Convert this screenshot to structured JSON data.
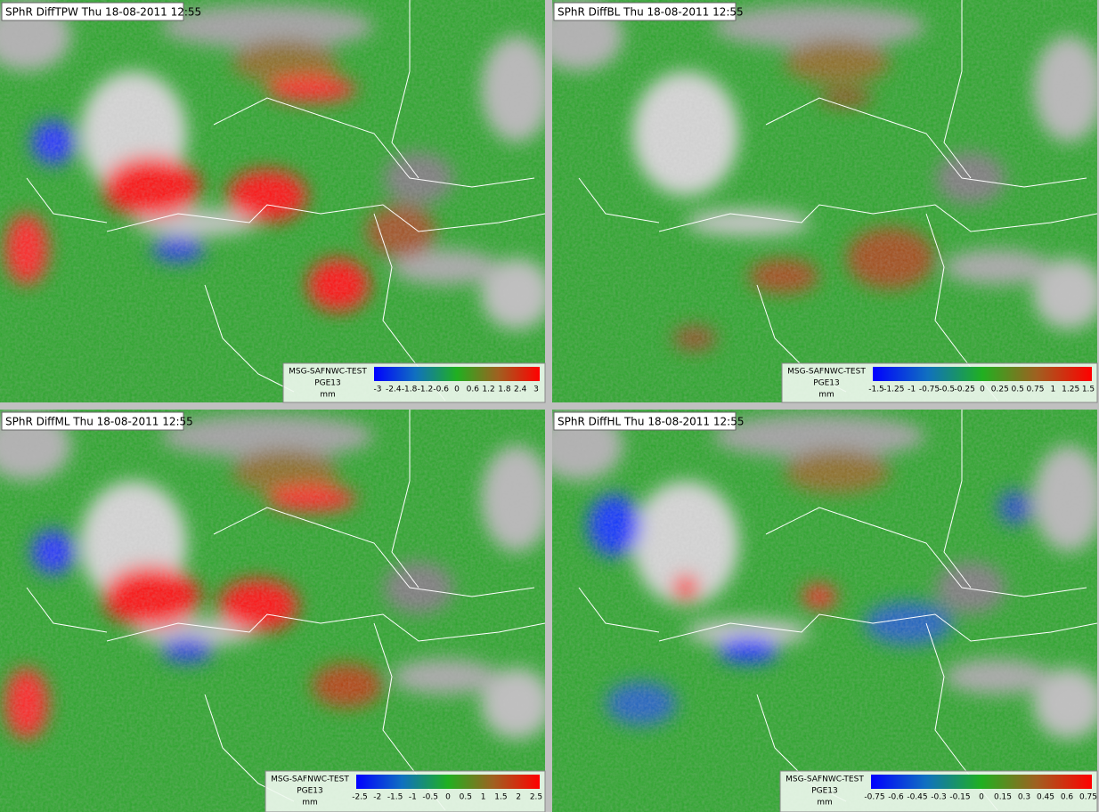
{
  "panels": [
    {
      "title": "SPhR DiffTPW Thu 18-08-2011 12:55",
      "legend": {
        "source": "MSG-SAFNWC-TEST",
        "product": "PGE13",
        "unit": "mm",
        "ticks": [
          "-3",
          "-2.4",
          "-1.8",
          "-1.2",
          "-0.6",
          "0",
          "0.6",
          "1.2",
          "1.8",
          "2.4",
          "3"
        ]
      }
    },
    {
      "title": "SPhR DiffBL Thu 18-08-2011 12:55",
      "legend": {
        "source": "MSG-SAFNWC-TEST",
        "product": "PGE13",
        "unit": "mm",
        "ticks": [
          "-1.5",
          "-1.25",
          "-1",
          "-0.75",
          "-0.5",
          "-0.25",
          "0",
          "0.25",
          "0.5",
          "0.75",
          "1",
          "1.25",
          "1.5"
        ]
      }
    },
    {
      "title": "SPhR DiffML Thu 18-08-2011 12:55",
      "legend": {
        "source": "MSG-SAFNWC-TEST",
        "product": "PGE13",
        "unit": "mm",
        "ticks": [
          "-2.5",
          "-2",
          "-1.5",
          "-1",
          "-0.5",
          "0",
          "0.5",
          "1",
          "1.5",
          "2",
          "2.5"
        ]
      }
    },
    {
      "title": "SPhR DiffHL Thu 18-08-2011 12:55",
      "legend": {
        "source": "MSG-SAFNWC-TEST",
        "product": "PGE13",
        "unit": "mm",
        "ticks": [
          "-0.75",
          "-0.6",
          "-0.45",
          "-0.3",
          "-0.15",
          "0",
          "0.15",
          "0.3",
          "0.45",
          "0.6",
          "0.75"
        ]
      }
    }
  ]
}
